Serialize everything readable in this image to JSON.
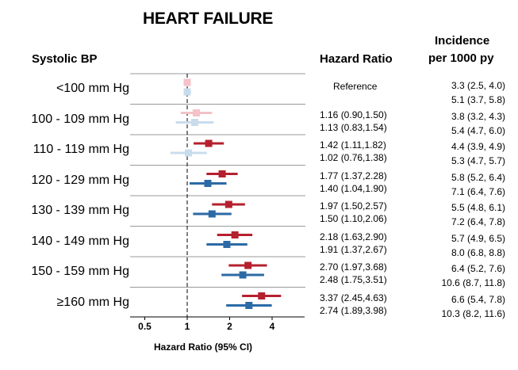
{
  "title": "HEART FAILURE",
  "headers": {
    "systolic_bp": "Systolic BP",
    "hazard_ratio": "Hazard Ratio",
    "incidence_line1": "Incidence",
    "incidence_line2": "per 1000 py"
  },
  "colors": {
    "series1": "#b5202e",
    "series1_ref": "#f4c2c8",
    "series2": "#2c6aa6",
    "series2_ref": "#c9dcec",
    "gridline": "#999999",
    "axis": "#000000"
  },
  "rows": [
    {
      "label": "<100 mm Hg",
      "hr1": "Reference",
      "hr2": "",
      "inc1": "3.3 (2.5, 4.0)",
      "inc2": "5.1 (3.7, 5.8)"
    },
    {
      "label": "100 - 109 mm Hg",
      "hr1": "1.16 (0.90,1.50)",
      "hr2": "1.13 (0.83,1.54)",
      "inc1": "3.8 (3.2, 4.3)",
      "inc2": "5.4 (4.7, 6.0)"
    },
    {
      "label": "110 - 119 mm Hg",
      "hr1": "1.42 (1.11,1.82)",
      "hr2": "1.02 (0.76,1.38)",
      "inc1": "4.4 (3.9, 4.9)",
      "inc2": "5.3 (4.7, 5.7)"
    },
    {
      "label": "120 - 129 mm Hg",
      "hr1": "1.77 (1.37,2.28)",
      "hr2": "1.40 (1.04,1.90)",
      "inc1": "5.8 (5.2, 6.4)",
      "inc2": "7.1 (6.4, 7.6)"
    },
    {
      "label": "130 - 139 mm Hg",
      "hr1": "1.97 (1.50,2.57)",
      "hr2": "1.50 (1.10,2.06)",
      "inc1": "5.5 (4.8, 6.1)",
      "inc2": "7.2 (6.4, 7.8)"
    },
    {
      "label": "140 - 149 mm Hg",
      "hr1": "2.18 (1.63,2.90)",
      "hr2": "1.91 (1.37,2.67)",
      "inc1": "5.7 (4.9, 6.5)",
      "inc2": "8.0 (6.8, 8.8)"
    },
    {
      "label": "150 - 159 mm Hg",
      "hr1": "2.70 (1.97,3.68)",
      "hr2": "2.48 (1.75,3.51)",
      "inc1": "6.4 (5.2, 7.6)",
      "inc2": "10.6 (8.7, 11.8)"
    },
    {
      "label": "≥160 mm Hg",
      "hr1": "3.37 (2.45,4.63)",
      "hr2": "2.74 (1.89,3.98)",
      "inc1": "6.6 (5.4, 7.8)",
      "inc2": "10.3 (8.2, 11.6)"
    }
  ],
  "chart_data": {
    "type": "scatter",
    "subtype": "forest_plot",
    "xlabel": "Hazard Ratio (95% CI)",
    "xscale": "log2",
    "xticks": [
      0.5,
      1,
      2,
      4
    ],
    "xtick_labels": [
      "0.5",
      "1",
      "2",
      "4"
    ],
    "xlim": [
      0.4,
      5.3
    ],
    "reference_line": 1,
    "categories": [
      "<100 mm Hg",
      "100 - 109 mm Hg",
      "110 - 119 mm Hg",
      "120 - 129 mm Hg",
      "130 - 139 mm Hg",
      "140 - 149 mm Hg",
      "150 - 159 mm Hg",
      "≥160 mm Hg"
    ],
    "series": [
      {
        "values": [
          1.0,
          1.16,
          1.42,
          1.77,
          1.97,
          2.18,
          2.7,
          3.37
        ],
        "lower": [
          1.0,
          0.9,
          1.11,
          1.37,
          1.5,
          1.63,
          1.97,
          2.45
        ],
        "upper": [
          1.0,
          1.5,
          1.82,
          2.28,
          2.57,
          2.9,
          3.68,
          4.63
        ],
        "significant": [
          false,
          false,
          true,
          true,
          true,
          true,
          true,
          true
        ]
      },
      {
        "values": [
          1.0,
          1.13,
          1.02,
          1.4,
          1.5,
          1.91,
          2.48,
          2.74
        ],
        "lower": [
          1.0,
          0.83,
          0.76,
          1.04,
          1.1,
          1.37,
          1.75,
          1.89
        ],
        "upper": [
          1.0,
          1.54,
          1.38,
          1.9,
          2.06,
          2.67,
          3.51,
          3.98
        ],
        "significant": [
          false,
          false,
          false,
          true,
          true,
          true,
          true,
          true
        ]
      }
    ],
    "grid": false
  }
}
